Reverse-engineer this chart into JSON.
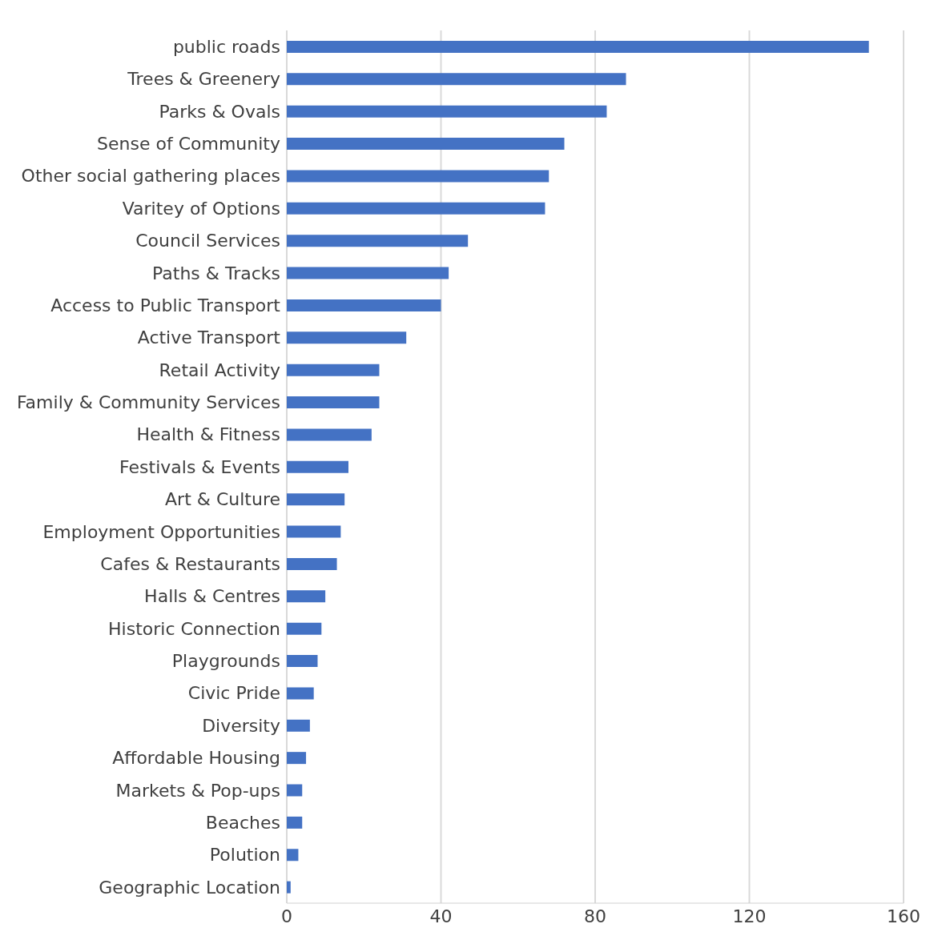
{
  "chart_data": {
    "type": "bar",
    "orientation": "horizontal",
    "categories": [
      "public roads",
      "Trees & Greenery",
      "Parks & Ovals",
      "Sense of Community",
      "Other social gathering places",
      "Varitey of Options",
      "Council Services",
      "Paths & Tracks",
      "Access to Public Transport",
      "Active Transport",
      "Retail Activity",
      "Family & Community Services",
      "Health & Fitness",
      "Festivals & Events",
      "Art & Culture",
      "Employment Opportunities",
      "Cafes & Restaurants",
      "Halls & Centres",
      "Historic Connection",
      "Playgrounds",
      "Civic Pride",
      "Diversity",
      "Affordable Housing",
      "Markets & Pop-ups",
      "Beaches",
      "Polution",
      "Geographic Location"
    ],
    "values": [
      151,
      88,
      83,
      72,
      68,
      67,
      47,
      42,
      40,
      31,
      24,
      24,
      22,
      16,
      15,
      14,
      13,
      10,
      9,
      8,
      7,
      6,
      5,
      4,
      4,
      3,
      1
    ],
    "color": "#4472c4",
    "xlim": [
      0,
      160
    ],
    "xticks": [
      0,
      40,
      80,
      120,
      160
    ],
    "grid": "x"
  }
}
